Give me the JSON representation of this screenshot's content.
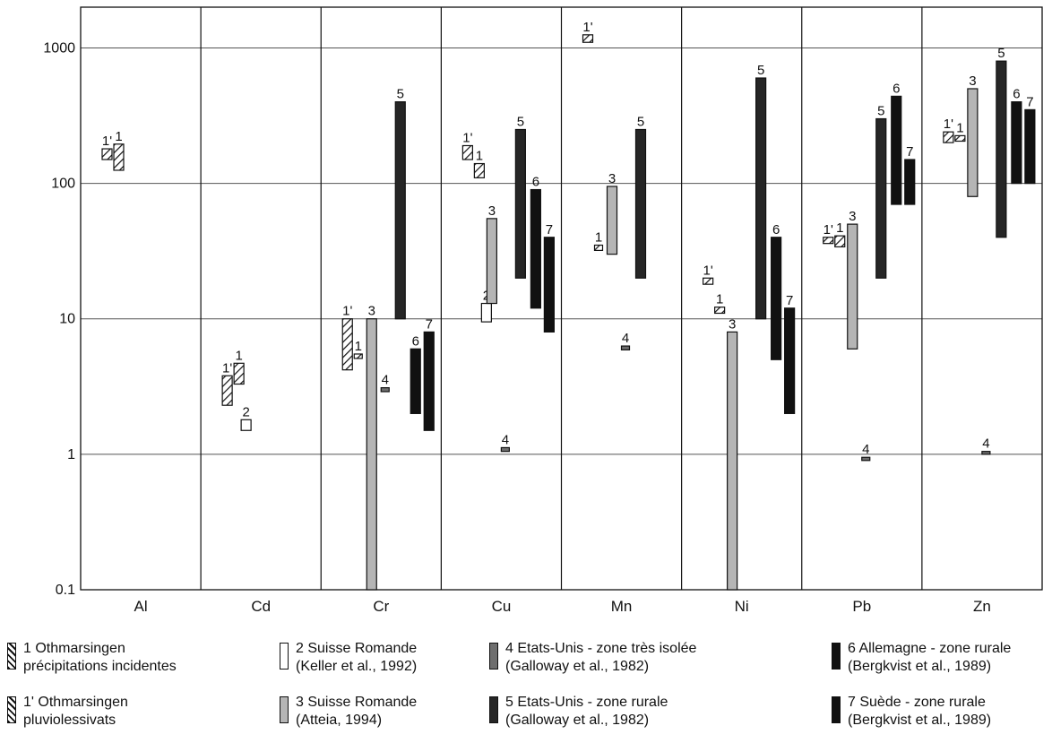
{
  "chart_data": {
    "type": "bar",
    "y_scale": "log",
    "ylim": [
      0.1,
      2000
    ],
    "y_ticks": [
      "0.1",
      "1",
      "10",
      "100",
      "1000"
    ],
    "grid": true,
    "categories": [
      "Al",
      "Cd",
      "Cr",
      "Cu",
      "Mn",
      "Ni",
      "Pb",
      "Zn"
    ],
    "series_styles": {
      "1": {
        "fill": "#ffffff",
        "pattern": "hatch"
      },
      "1'": {
        "fill": "#ffffff",
        "pattern": "hatch"
      },
      "2": {
        "fill": "#ffffff",
        "pattern": "none"
      },
      "3": {
        "fill": "#b5b5b5",
        "pattern": "none"
      },
      "4": {
        "fill": "#6e6e6e",
        "pattern": "none"
      },
      "5": {
        "fill": "#262626",
        "pattern": "none"
      },
      "6": {
        "fill": "#111111",
        "pattern": "none"
      },
      "7": {
        "fill": "#111111",
        "pattern": "none"
      }
    },
    "ranges": [
      {
        "category": "Al",
        "series": "1'",
        "label": "1'",
        "low": 150,
        "high": 180
      },
      {
        "category": "Al",
        "series": "1",
        "label": "1",
        "low": 125,
        "high": 195
      },
      {
        "category": "Cd",
        "series": "1'",
        "label": "1'",
        "low": 2.3,
        "high": 3.8
      },
      {
        "category": "Cd",
        "series": "1",
        "label": "1",
        "low": 3.3,
        "high": 4.7
      },
      {
        "category": "Cd",
        "series": "2",
        "label": "2",
        "low": 1.5,
        "high": 1.8
      },
      {
        "category": "Cr",
        "series": "1'",
        "label": "1'",
        "low": 4.2,
        "high": 10
      },
      {
        "category": "Cr",
        "series": "1",
        "label": "1",
        "low": 5.1,
        "high": 5.5
      },
      {
        "category": "Cr",
        "series": "3",
        "label": "3",
        "low": 0.1,
        "high": 10
      },
      {
        "category": "Cr",
        "series": "4",
        "label": "4",
        "low": 2.9,
        "high": 3.1
      },
      {
        "category": "Cr",
        "series": "5",
        "label": "5",
        "low": 10,
        "high": 400
      },
      {
        "category": "Cr",
        "series": "6",
        "label": "6",
        "low": 2,
        "high": 6
      },
      {
        "category": "Cr",
        "series": "7",
        "label": "7",
        "low": 1.5,
        "high": 8
      },
      {
        "category": "Cu",
        "series": "1'",
        "label": "1'",
        "low": 150,
        "high": 190
      },
      {
        "category": "Cu",
        "series": "1",
        "label": "1",
        "low": 110,
        "high": 140
      },
      {
        "category": "Cu",
        "series": "2",
        "label": "2",
        "low": 9.5,
        "high": 13
      },
      {
        "category": "Cu",
        "series": "3",
        "label": "3",
        "low": 13,
        "high": 55
      },
      {
        "category": "Cu",
        "series": "4",
        "label": "4",
        "low": 1.05,
        "high": 1.12
      },
      {
        "category": "Cu",
        "series": "5",
        "label": "5",
        "low": 20,
        "high": 250
      },
      {
        "category": "Cu",
        "series": "6",
        "label": "6",
        "low": 12,
        "high": 90
      },
      {
        "category": "Cu",
        "series": "7",
        "label": "7",
        "low": 8,
        "high": 40
      },
      {
        "category": "Mn",
        "series": "1'",
        "label": "1'",
        "low": 1100,
        "high": 1250
      },
      {
        "category": "Mn",
        "series": "1",
        "label": "1",
        "low": 32,
        "high": 35
      },
      {
        "category": "Mn",
        "series": "3",
        "label": "3",
        "low": 30,
        "high": 95
      },
      {
        "category": "Mn",
        "series": "4",
        "label": "4",
        "low": 5.9,
        "high": 6.3
      },
      {
        "category": "Mn",
        "series": "5",
        "label": "5",
        "low": 20,
        "high": 250
      },
      {
        "category": "Ni",
        "series": "1'",
        "label": "1'",
        "low": 18,
        "high": 20
      },
      {
        "category": "Ni",
        "series": "1",
        "label": "1",
        "low": 11,
        "high": 12.2
      },
      {
        "category": "Ni",
        "series": "3",
        "label": "3",
        "low": 0.1,
        "high": 8
      },
      {
        "category": "Ni",
        "series": "5",
        "label": "5",
        "low": 10,
        "high": 600
      },
      {
        "category": "Ni",
        "series": "6",
        "label": "6",
        "low": 5,
        "high": 40
      },
      {
        "category": "Ni",
        "series": "7",
        "label": "7",
        "low": 2,
        "high": 12
      },
      {
        "category": "Pb",
        "series": "1'",
        "label": "1'",
        "low": 36,
        "high": 40
      },
      {
        "category": "Pb",
        "series": "1",
        "label": "1",
        "low": 34,
        "high": 41
      },
      {
        "category": "Pb",
        "series": "3",
        "label": "3",
        "low": 6,
        "high": 50
      },
      {
        "category": "Pb",
        "series": "4",
        "label": "4",
        "low": 0.9,
        "high": 0.95
      },
      {
        "category": "Pb",
        "series": "5",
        "label": "5",
        "low": 20,
        "high": 300
      },
      {
        "category": "Pb",
        "series": "6",
        "label": "6",
        "low": 70,
        "high": 440
      },
      {
        "category": "Pb",
        "series": "7",
        "label": "7",
        "low": 70,
        "high": 150
      },
      {
        "category": "Zn",
        "series": "1'",
        "label": "1'",
        "low": 200,
        "high": 240
      },
      {
        "category": "Zn",
        "series": "1",
        "label": "1",
        "low": 205,
        "high": 225
      },
      {
        "category": "Zn",
        "series": "3",
        "label": "3",
        "low": 80,
        "high": 500
      },
      {
        "category": "Zn",
        "series": "4",
        "label": "4",
        "low": 1,
        "high": 1.05
      },
      {
        "category": "Zn",
        "series": "5",
        "label": "5",
        "low": 40,
        "high": 800
      },
      {
        "category": "Zn",
        "series": "6",
        "label": "6",
        "low": 100,
        "high": 400
      },
      {
        "category": "Zn",
        "series": "7",
        "label": "7",
        "low": 100,
        "high": 350
      }
    ],
    "legend": [
      {
        "series": "1",
        "text": "1 Othmarsingen\nprécipitations incidentes"
      },
      {
        "series": "2",
        "text": "2 Suisse Romande\n(Keller et al., 1992)"
      },
      {
        "series": "4",
        "text": "4 Etats-Unis - zone très isolée\n(Galloway et al., 1982)"
      },
      {
        "series": "6",
        "text": "6 Allemagne - zone rurale\n(Bergkvist et al., 1989)"
      },
      {
        "series": "1'",
        "text": "1' Othmarsingen\npluviolessivats"
      },
      {
        "series": "3",
        "text": "3 Suisse Romande\n(Atteia, 1994)"
      },
      {
        "series": "5",
        "text": "5 Etats-Unis - zone rurale\n(Galloway et al., 1982)"
      },
      {
        "series": "7",
        "text": "7 Suède - zone rurale\n(Bergkvist et al., 1989)"
      }
    ]
  }
}
